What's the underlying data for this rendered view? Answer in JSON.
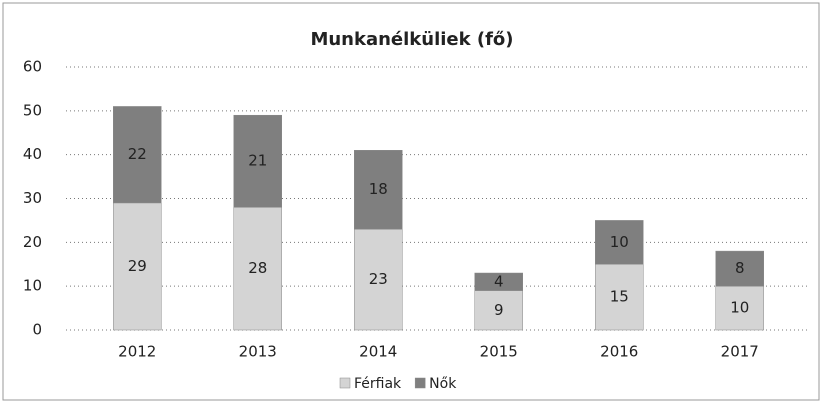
{
  "chart_data": {
    "type": "stacked_bar",
    "title": "Munkanélküliek (fő)",
    "categories": [
      "2012",
      "2013",
      "2014",
      "2015",
      "2016",
      "2017"
    ],
    "series": [
      {
        "name": "Férfiak",
        "color": "#d4d4d4",
        "values": [
          29,
          28,
          23,
          9,
          15,
          10
        ]
      },
      {
        "name": "Nők",
        "color": "#7f7f7f",
        "values": [
          22,
          21,
          18,
          4,
          10,
          8
        ]
      }
    ],
    "ylim": [
      0,
      60
    ],
    "yticks": [
      0,
      10,
      20,
      30,
      40,
      50,
      60
    ],
    "grid": true,
    "legend": "bottom"
  }
}
